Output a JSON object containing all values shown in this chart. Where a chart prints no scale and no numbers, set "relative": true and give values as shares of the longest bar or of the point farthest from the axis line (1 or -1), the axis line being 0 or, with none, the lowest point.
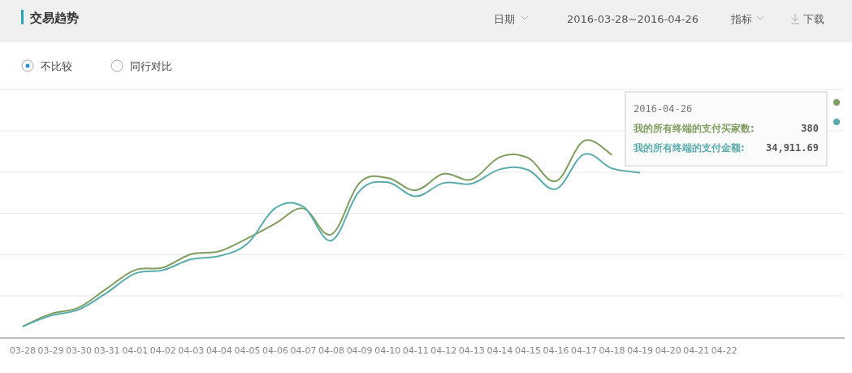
{
  "chart_data": {
    "type": "line",
    "title": "交易趋势",
    "relative": true,
    "grid": "y",
    "legend": false,
    "marker": "none",
    "line_style": "solid",
    "categories": [
      "03-28",
      "03-29",
      "03-30",
      "03-31",
      "04-01",
      "04-02",
      "04-03",
      "04-04",
      "04-05",
      "04-06",
      "04-07",
      "04-08",
      "04-09",
      "04-10",
      "04-11",
      "04-12",
      "04-13",
      "04-14",
      "04-15",
      "04-16",
      "04-17",
      "04-18",
      "04-19",
      "04-20",
      "04-21",
      "04-22",
      null,
      null,
      null,
      null
    ],
    "series": [
      {
        "name": "我的所有终端的支付买家数:",
        "color": "#7f9d5e",
        "values": [
          0.046,
          0.1,
          0.127,
          0.208,
          0.286,
          0.297,
          0.354,
          0.366,
          0.421,
          0.484,
          0.548,
          0.438,
          0.657,
          0.678,
          0.626,
          0.696,
          0.672,
          0.767,
          0.764,
          0.665,
          0.836,
          0.776,
          null,
          null,
          null,
          null,
          null,
          null,
          null,
          1
        ]
      },
      {
        "name": "我的所有终端的支付金额:",
        "color": "#5aacac",
        "values": [
          0.046,
          0.092,
          0.118,
          0.19,
          0.271,
          0.286,
          0.332,
          0.346,
          0.398,
          0.55,
          0.556,
          0.412,
          0.623,
          0.66,
          0.6,
          0.657,
          0.654,
          0.715,
          0.713,
          0.631,
          0.779,
          0.719,
          0.701,
          null,
          null,
          null,
          null,
          null,
          null,
          0.917
        ]
      }
    ],
    "annotations": [
      "日期",
      "2016-03-28~2016-04-26",
      "指标",
      "下载",
      "不比较",
      "同行对比",
      "2016-04-26",
      "380",
      "34,911.69"
    ]
  }
}
